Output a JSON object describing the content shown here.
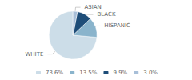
{
  "chart_data": {
    "type": "pie",
    "categories": [
      "WHITE",
      "HISPANIC",
      "BLACK",
      "ASIAN"
    ],
    "values": [
      73.6,
      13.5,
      9.9,
      3.0
    ],
    "value_labels": [
      "73.6%",
      "13.5%",
      "9.9%",
      "3.0%"
    ],
    "colors": [
      "#ccdde8",
      "#8ab4cc",
      "#1e4d78",
      "#a8bfd8"
    ],
    "legend": "bottom"
  }
}
